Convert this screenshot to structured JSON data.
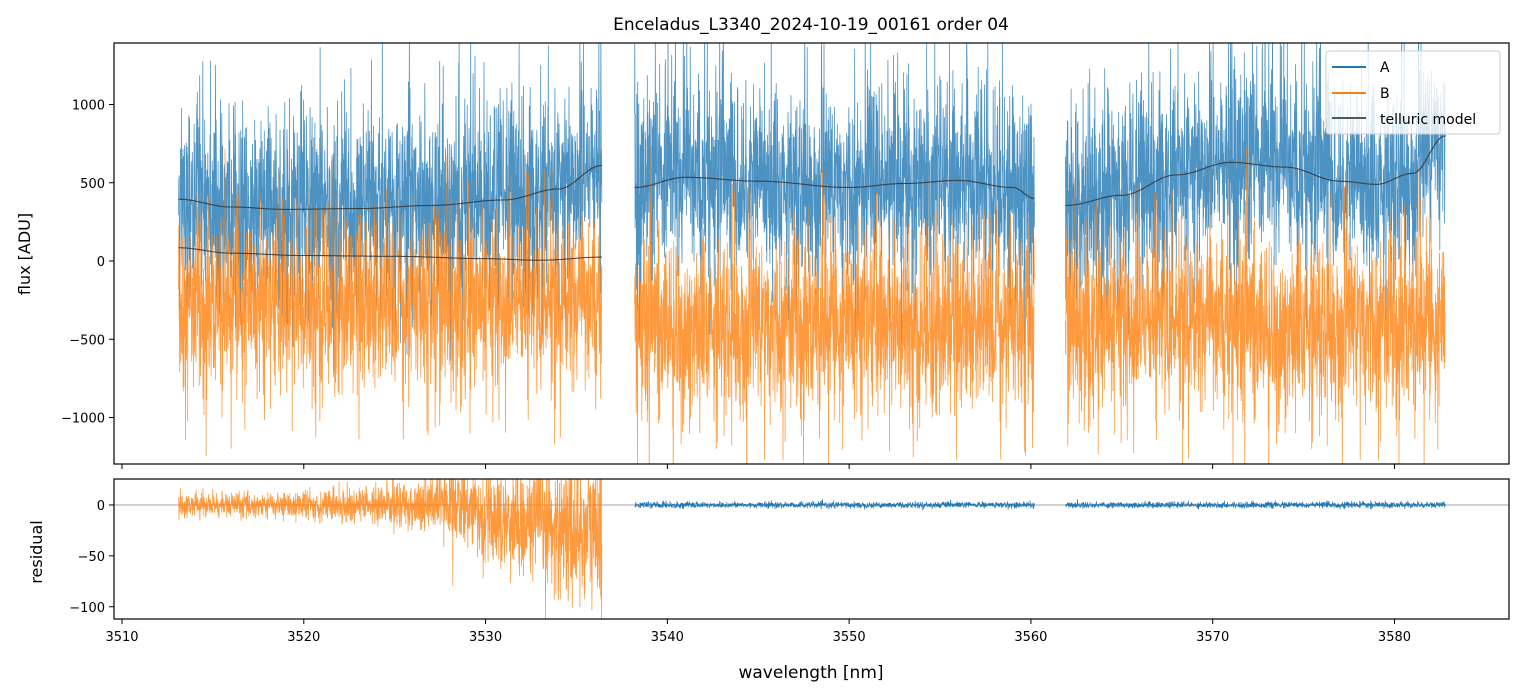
{
  "chart_data": [
    {
      "type": "line",
      "title": "Enceladus_L3340_2024-10-19_00161  order 04",
      "xlabel": "",
      "ylabel": "flux [ADU]",
      "xlim": [
        3509.56,
        3586.3
      ],
      "ylim": [
        -1297,
        1393
      ],
      "yticks": [
        1000,
        500,
        0,
        -500,
        -1000
      ],
      "ytick_labels": [
        "1000",
        "500",
        "0",
        "−500",
        "−1000"
      ],
      "xticks": [
        3510,
        3520,
        3530,
        3540,
        3550,
        3560,
        3570,
        3580
      ],
      "legend": {
        "placement": "top-right",
        "entries": [
          "A",
          "B",
          "telluric model"
        ]
      },
      "segments": [
        [
          3513.1,
          3536.4
        ],
        [
          3538.2,
          3560.2
        ],
        [
          3561.9,
          3582.8
        ]
      ],
      "series": [
        {
          "name": "A",
          "color": "#1f77b4",
          "kind": "noisy spectrum",
          "baseline": "telluric model A",
          "noise_sigma": 300
        },
        {
          "name": "B",
          "color": "#ff7f0e",
          "kind": "noisy spectrum",
          "baseline": -330,
          "noise_sigma": 280
        },
        {
          "name": "telluric model",
          "color": "#333333",
          "curves": [
            {
              "id": "A-seg1",
              "x": [
                3513.1,
                3516,
                3519,
                3523,
                3527,
                3531,
                3534,
                3536.4
              ],
              "y": [
                395,
                345,
                330,
                335,
                355,
                390,
                460,
                610
              ]
            },
            {
              "id": "A-seg2",
              "x": [
                3538.2,
                3541,
                3545,
                3550,
                3553,
                3556,
                3559,
                3560.2
              ],
              "y": [
                470,
                535,
                510,
                470,
                495,
                515,
                470,
                400
              ]
            },
            {
              "id": "A-seg3",
              "x": [
                3561.9,
                3565,
                3568,
                3571,
                3574,
                3577,
                3579,
                3581,
                3582.8
              ],
              "y": [
                355,
                420,
                550,
                630,
                600,
                510,
                490,
                560,
                800
              ]
            },
            {
              "id": "B-seg1",
              "x": [
                3513.1,
                3516,
                3520,
                3525,
                3530,
                3533,
                3536.4
              ],
              "y": [
                85,
                50,
                35,
                30,
                15,
                5,
                25
              ]
            }
          ]
        }
      ]
    },
    {
      "type": "line",
      "xlabel": "wavelength [nm]",
      "ylabel": "residual",
      "xlim": [
        3509.56,
        3586.3
      ],
      "ylim": [
        -112,
        25.5
      ],
      "yticks": [
        0,
        -50,
        -100
      ],
      "ytick_labels": [
        "0",
        "−50",
        "−100"
      ],
      "xticks": [
        3510,
        3520,
        3530,
        3540,
        3550,
        3560,
        3570,
        3580
      ],
      "xtick_labels": [
        "3510",
        "3520",
        "3530",
        "3540",
        "3550",
        "3560",
        "3570",
        "3580"
      ],
      "series": [
        {
          "name": "B residual",
          "color": "#ff7f0e",
          "segment": [
            3513.1,
            3536.4
          ],
          "noise_sigma_start": 6,
          "noise_sigma_end": 45
        },
        {
          "name": "A residual",
          "color": "#1f77b4",
          "segments": [
            [
              3538.2,
              3560.2
            ],
            [
              3561.9,
              3582.8
            ]
          ],
          "noise_sigma": 1.5
        }
      ]
    }
  ]
}
